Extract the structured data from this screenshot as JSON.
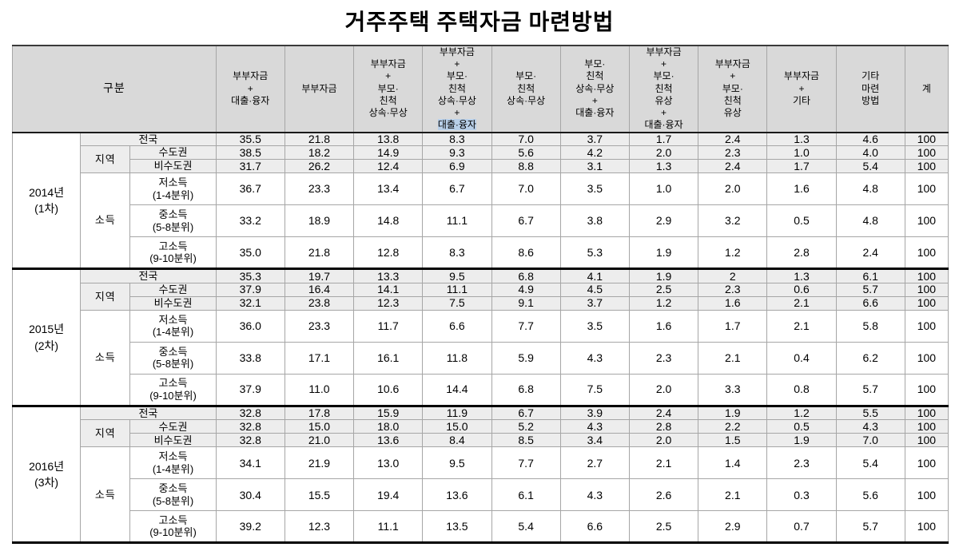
{
  "title": "거주주택 주택자금 마련방법",
  "colors": {
    "header_bg": "#d9d9d9",
    "shaded_row_bg": "#ededed",
    "selection_highlight": "#b8cfe8",
    "thick_rule": "#000000",
    "thin_rule": "#a6a6a6"
  },
  "chart_data": {
    "type": "table",
    "title": "거주주택 주택자금 마련방법",
    "corner_header": "구분",
    "columns": [
      "부부자금\n+\n대출·융자",
      "부부자금",
      "부부자금\n+\n부모·\n친척\n상속·무상",
      "부부자금\n+\n부모·\n친척\n상속·무상\n+\n대출·융자",
      "부모·\n친척\n상속·무상",
      "부모·\n친척\n상속·무상\n+\n대출·융자",
      "부부자금\n+\n부모·\n친척\n유상\n+\n대출·융자",
      "부부자금\n+\n부모·\n친척\n유상",
      "부부자금\n+\n기타",
      "기타\n마련\n방법",
      "계"
    ],
    "header_selection_highlight": {
      "column_index": 3,
      "text": "대출·융자"
    },
    "groups": [
      {
        "year": "2014년\n(1차)",
        "rows": [
          {
            "label": "전국",
            "label_colspan": 2,
            "values": [
              "35.5",
              "21.8",
              "13.8",
              "8.3",
              "7.0",
              "3.7",
              "1.7",
              "2.4",
              "1.3",
              "4.6",
              "100"
            ]
          },
          {
            "section": "지역",
            "section_rowspan": 2,
            "label": "수도권",
            "values": [
              "38.5",
              "18.2",
              "14.9",
              "9.3",
              "5.6",
              "4.2",
              "2.0",
              "2.3",
              "1.0",
              "4.0",
              "100"
            ]
          },
          {
            "label": "비수도권",
            "values": [
              "31.7",
              "26.2",
              "12.4",
              "6.9",
              "8.8",
              "3.1",
              "1.3",
              "2.4",
              "1.7",
              "5.4",
              "100"
            ]
          },
          {
            "section": "소득",
            "section_rowspan": 3,
            "label": "저소득\n(1-4분위)",
            "values": [
              "36.7",
              "23.3",
              "13.4",
              "6.7",
              "7.0",
              "3.5",
              "1.0",
              "2.0",
              "1.6",
              "4.8",
              "100"
            ]
          },
          {
            "label": "중소득\n(5-8분위)",
            "values": [
              "33.2",
              "18.9",
              "14.8",
              "11.1",
              "6.7",
              "3.8",
              "2.9",
              "3.2",
              "0.5",
              "4.8",
              "100"
            ]
          },
          {
            "label": "고소득\n(9-10분위)",
            "values": [
              "35.0",
              "21.8",
              "12.8",
              "8.3",
              "8.6",
              "5.3",
              "1.9",
              "1.2",
              "2.8",
              "2.4",
              "100"
            ]
          }
        ]
      },
      {
        "year": "2015년\n(2차)",
        "rows": [
          {
            "label": "전국",
            "label_colspan": 2,
            "values": [
              "35.3",
              "19.7",
              "13.3",
              "9.5",
              "6.8",
              "4.1",
              "1.9",
              "2",
              "1.3",
              "6.1",
              "100"
            ]
          },
          {
            "section": "지역",
            "section_rowspan": 2,
            "label": "수도권",
            "values": [
              "37.9",
              "16.4",
              "14.1",
              "11.1",
              "4.9",
              "4.5",
              "2.5",
              "2.3",
              "0.6",
              "5.7",
              "100"
            ]
          },
          {
            "label": "비수도권",
            "values": [
              "32.1",
              "23.8",
              "12.3",
              "7.5",
              "9.1",
              "3.7",
              "1.2",
              "1.6",
              "2.1",
              "6.6",
              "100"
            ]
          },
          {
            "section": "소득",
            "section_rowspan": 3,
            "label": "저소득\n(1-4분위)",
            "values": [
              "36.0",
              "23.3",
              "11.7",
              "6.6",
              "7.7",
              "3.5",
              "1.6",
              "1.7",
              "2.1",
              "5.8",
              "100"
            ]
          },
          {
            "label": "중소득\n(5-8분위)",
            "values": [
              "33.8",
              "17.1",
              "16.1",
              "11.8",
              "5.9",
              "4.3",
              "2.3",
              "2.1",
              "0.4",
              "6.2",
              "100"
            ]
          },
          {
            "label": "고소득\n(9-10분위)",
            "values": [
              "37.9",
              "11.0",
              "10.6",
              "14.4",
              "6.8",
              "7.5",
              "2.0",
              "3.3",
              "0.8",
              "5.7",
              "100"
            ]
          }
        ]
      },
      {
        "year": "2016년\n(3차)",
        "rows": [
          {
            "label": "전국",
            "label_colspan": 2,
            "values": [
              "32.8",
              "17.8",
              "15.9",
              "11.9",
              "6.7",
              "3.9",
              "2.4",
              "1.9",
              "1.2",
              "5.5",
              "100"
            ]
          },
          {
            "section": "지역",
            "section_rowspan": 2,
            "label": "수도권",
            "values": [
              "32.8",
              "15.0",
              "18.0",
              "15.0",
              "5.2",
              "4.3",
              "2.8",
              "2.2",
              "0.5",
              "4.3",
              "100"
            ]
          },
          {
            "label": "비수도권",
            "values": [
              "32.8",
              "21.0",
              "13.6",
              "8.4",
              "8.5",
              "3.4",
              "2.0",
              "1.5",
              "1.9",
              "7.0",
              "100"
            ]
          },
          {
            "section": "소득",
            "section_rowspan": 3,
            "label": "저소득\n(1-4분위)",
            "values": [
              "34.1",
              "21.9",
              "13.0",
              "9.5",
              "7.7",
              "2.7",
              "2.1",
              "1.4",
              "2.3",
              "5.4",
              "100"
            ]
          },
          {
            "label": "중소득\n(5-8분위)",
            "values": [
              "30.4",
              "15.5",
              "19.4",
              "13.6",
              "6.1",
              "4.3",
              "2.6",
              "2.1",
              "0.3",
              "5.6",
              "100"
            ]
          },
          {
            "label": "고소득\n(9-10분위)",
            "values": [
              "39.2",
              "12.3",
              "11.1",
              "13.5",
              "5.4",
              "6.6",
              "2.5",
              "2.9",
              "0.7",
              "5.7",
              "100"
            ]
          }
        ]
      }
    ]
  }
}
